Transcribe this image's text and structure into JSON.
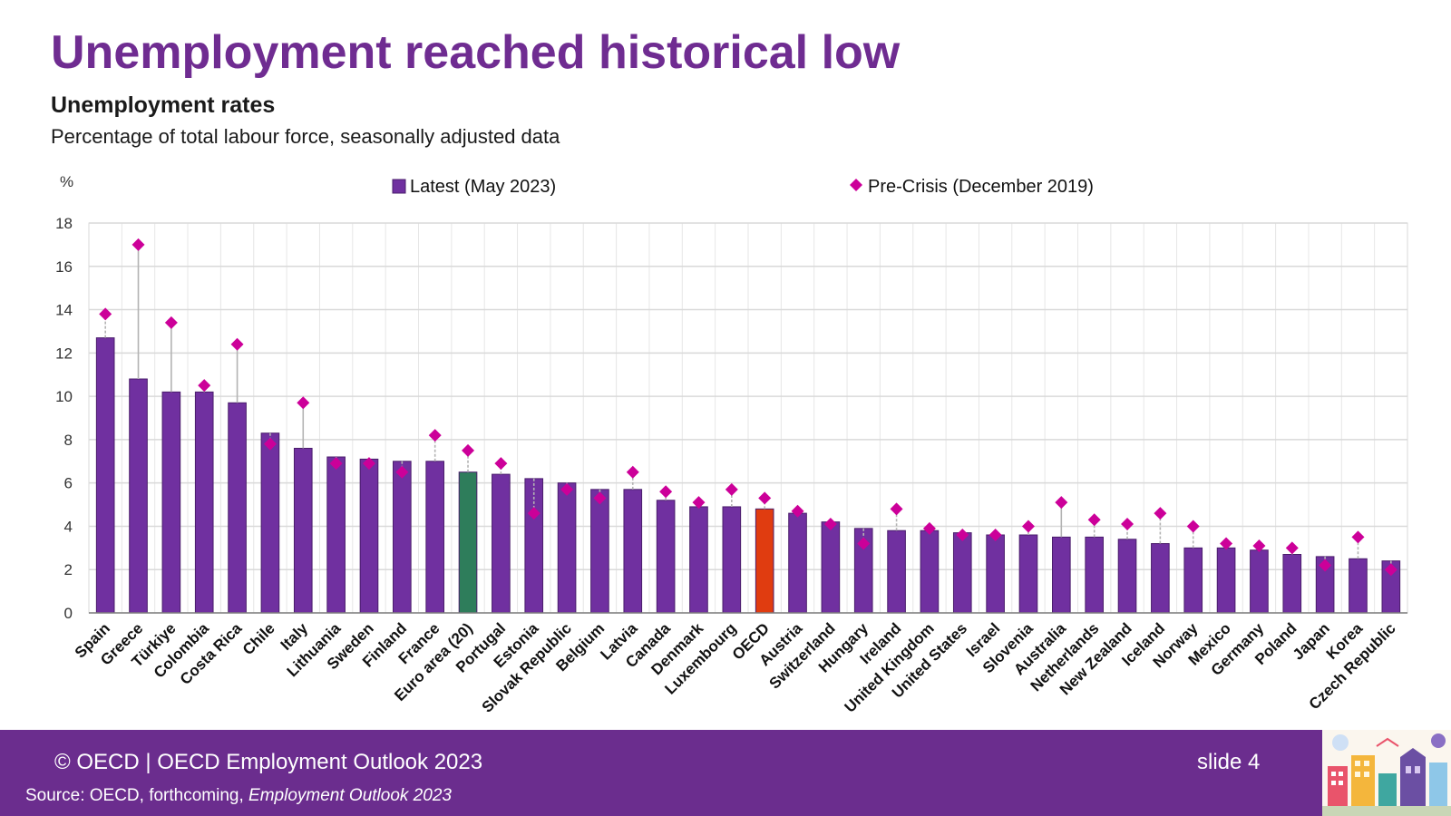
{
  "header": {
    "title": "Unemployment reached historical low",
    "subtitle": "Unemployment rates",
    "note": "Percentage of total labour force, seasonally adjusted data"
  },
  "chart_data": {
    "type": "bar",
    "y_unit_label": "%",
    "ylim": [
      0,
      18
    ],
    "yticks": [
      0,
      2,
      4,
      6,
      8,
      10,
      12,
      14,
      16,
      18
    ],
    "grid": true,
    "legend_position": "top",
    "categories": [
      "Spain",
      "Greece",
      "Türkiye",
      "Colombia",
      "Costa Rica",
      "Chile",
      "Italy",
      "Lithuania",
      "Sweden",
      "Finland",
      "France",
      "Euro area (20)",
      "Portugal",
      "Estonia",
      "Slovak Republic",
      "Belgium",
      "Latvia",
      "Canada",
      "Denmark",
      "Luxembourg",
      "OECD",
      "Austria",
      "Switzerland",
      "Hungary",
      "Ireland",
      "United Kingdom",
      "United States",
      "Israel",
      "Slovenia",
      "Australia",
      "Netherlands",
      "New Zealand",
      "Iceland",
      "Norway",
      "Mexico",
      "Germany",
      "Poland",
      "Japan",
      "Korea",
      "Czech Republic"
    ],
    "series": [
      {
        "name": "Latest (May 2023)",
        "kind": "bar",
        "color": "#7030a0",
        "values": [
          12.7,
          10.8,
          10.2,
          10.2,
          9.7,
          8.3,
          7.6,
          7.2,
          7.1,
          7.0,
          7.0,
          6.5,
          6.4,
          6.2,
          6.0,
          5.7,
          5.7,
          5.2,
          4.9,
          4.9,
          4.8,
          4.6,
          4.2,
          3.9,
          3.8,
          3.8,
          3.7,
          3.6,
          3.6,
          3.5,
          3.5,
          3.4,
          3.2,
          3.0,
          3.0,
          2.9,
          2.7,
          2.6,
          2.5,
          2.4
        ]
      },
      {
        "name": "Pre-Crisis (December 2019)",
        "kind": "marker",
        "color": "#cc0099",
        "values": [
          13.8,
          17.0,
          13.4,
          10.5,
          12.4,
          7.8,
          9.7,
          6.9,
          6.9,
          6.5,
          8.2,
          7.5,
          6.9,
          4.6,
          5.7,
          5.3,
          6.5,
          5.6,
          5.1,
          5.7,
          5.3,
          4.7,
          4.1,
          3.2,
          4.8,
          3.9,
          3.6,
          3.6,
          4.0,
          5.1,
          4.3,
          4.1,
          4.6,
          4.0,
          3.2,
          3.1,
          3.0,
          2.2,
          3.5,
          2.0
        ]
      }
    ],
    "highlight_colors": {
      "Euro area (20)": "#2e7d5b",
      "OECD": "#e03c10"
    }
  },
  "footer": {
    "copyright": "© OECD | OECD Employment Outlook 2023",
    "source_prefix": "Source: OECD, forthcoming, ",
    "source_italic": "Employment Outlook 2023",
    "slide": "slide 4"
  },
  "colors": {
    "brand_purple": "#6f2c91",
    "footer_bg": "#6b2d8e"
  },
  "icons": {
    "footer_art": "city-illustration-icon"
  }
}
